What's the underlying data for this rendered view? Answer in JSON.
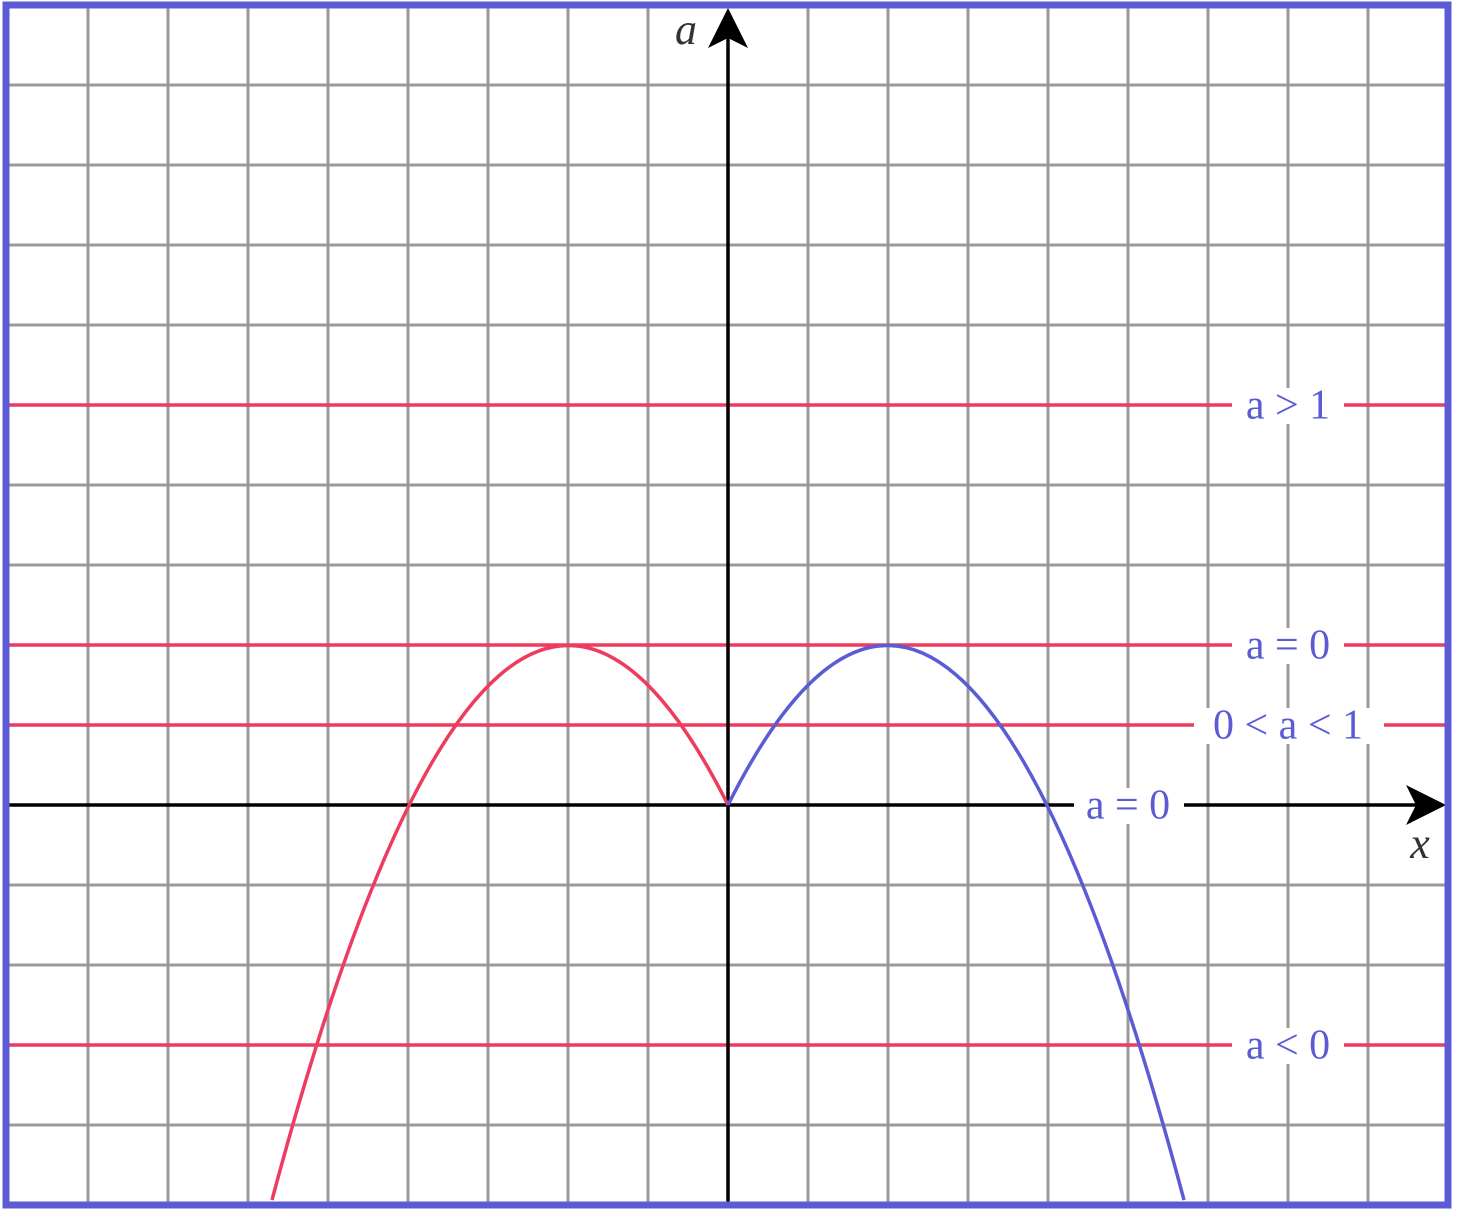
{
  "axes": {
    "y_label": "a",
    "x_label": "x"
  },
  "lines": [
    {
      "label": "a > 1"
    },
    {
      "label": "a = 0"
    },
    {
      "label": "0 < a < 1"
    },
    {
      "label": "a = 0"
    },
    {
      "label": "a < 0"
    }
  ]
}
